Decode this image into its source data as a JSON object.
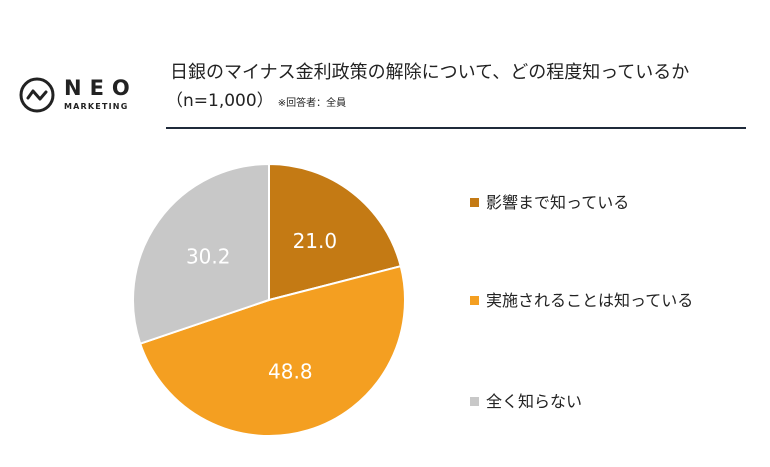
{
  "logo": {
    "name": "NEO",
    "sub": "MARKETING"
  },
  "header": {
    "title": "日銀のマイナス金利政策の解除について、どの程度知っているか",
    "subtitle": "（n=1,000）",
    "note": "※回答者：全員"
  },
  "colors": {
    "rule": "#1f2a3a",
    "text": "#222222"
  },
  "chart_data": {
    "type": "pie",
    "slices": [
      {
        "label": "影響まで知っている",
        "value": 21.0,
        "display": "21.0",
        "color": "#c47a14"
      },
      {
        "label": "実施されることは知っている",
        "value": 48.8,
        "display": "48.8",
        "color": "#f49f21"
      },
      {
        "label": "全く知らない",
        "value": 30.2,
        "display": "30.2",
        "color": "#c8c8c8"
      }
    ],
    "start_angle": "12 o'clock",
    "direction": "clockwise",
    "legend_position": "right"
  }
}
